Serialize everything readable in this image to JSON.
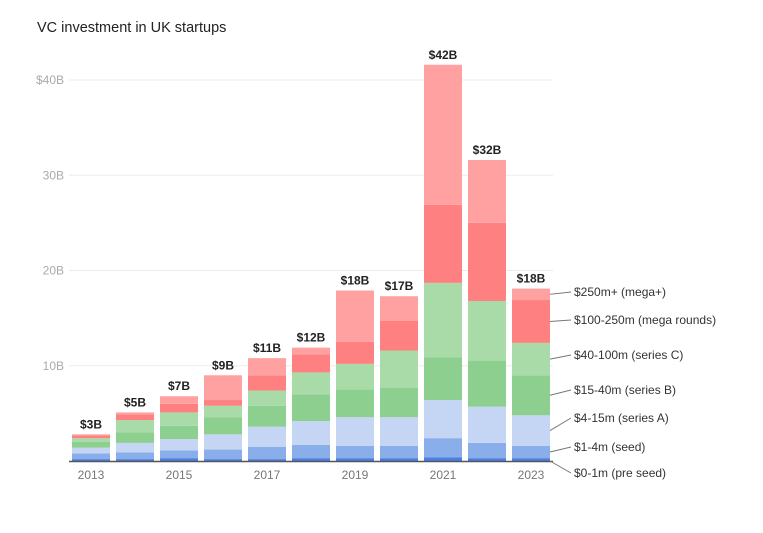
{
  "chart_data": {
    "type": "bar",
    "stacked": true,
    "title": "VC investment in UK startups",
    "xlabel": "",
    "ylabel": "",
    "ylim": [
      0,
      40
    ],
    "yticks": [
      {
        "value": 10,
        "label": "10B"
      },
      {
        "value": 20,
        "label": "20B"
      },
      {
        "value": 30,
        "label": "30B"
      },
      {
        "value": 40,
        "label": "$40B"
      }
    ],
    "grid": true,
    "legend_placement": "right (labels aligned to 2023 bar)",
    "categories": [
      "2013",
      "2014",
      "2015",
      "2016",
      "2017",
      "2018",
      "2019",
      "2020",
      "2021",
      "2022",
      "2023"
    ],
    "xtick_labels": [
      "2013",
      "",
      "2015",
      "",
      "2017",
      "",
      "2019",
      "",
      "2021",
      "",
      "2023"
    ],
    "totals": [
      "$3B",
      "$5B",
      "$7B",
      "$9B",
      "$11B",
      "$12B",
      "$18B",
      "$17B",
      "$42B",
      "$32B",
      "$18B"
    ],
    "series": [
      {
        "name": "$0-1m (pre seed)",
        "color": "#4a7fe6",
        "values": [
          0.2,
          0.2,
          0.3,
          0.2,
          0.2,
          0.3,
          0.3,
          0.3,
          0.4,
          0.3,
          0.3
        ]
      },
      {
        "name": "$1-4m (seed)",
        "color": "#8aaeea",
        "values": [
          0.6,
          0.7,
          0.8,
          1.0,
          1.3,
          1.4,
          1.3,
          1.3,
          2.0,
          1.6,
          1.3
        ]
      },
      {
        "name": "$4-15m (series A)",
        "color": "#c5d5f4",
        "values": [
          0.6,
          1.0,
          1.2,
          1.6,
          2.1,
          2.5,
          3.0,
          3.0,
          4.0,
          3.8,
          3.2
        ]
      },
      {
        "name": "$15-40m (series B)",
        "color": "#8ccf8e",
        "values": [
          0.6,
          1.1,
          1.4,
          1.8,
          2.2,
          2.8,
          2.9,
          3.1,
          4.5,
          4.8,
          4.2
        ]
      },
      {
        "name": "$40-100m (series C)",
        "color": "#a8dba8",
        "values": [
          0.4,
          1.3,
          1.4,
          1.2,
          1.6,
          2.3,
          2.7,
          3.9,
          7.8,
          6.3,
          3.4
        ]
      },
      {
        "name": "$100-250m (mega rounds)",
        "color": "#ff8080",
        "values": [
          0.3,
          0.6,
          0.9,
          0.6,
          1.6,
          1.9,
          2.3,
          3.1,
          8.2,
          8.2,
          4.5
        ]
      },
      {
        "name": "$250m+ (mega+)",
        "color": "#ffa1a1",
        "values": [
          0.1,
          0.2,
          0.8,
          2.6,
          1.8,
          0.7,
          5.4,
          2.6,
          14.7,
          6.6,
          1.2
        ]
      }
    ]
  }
}
